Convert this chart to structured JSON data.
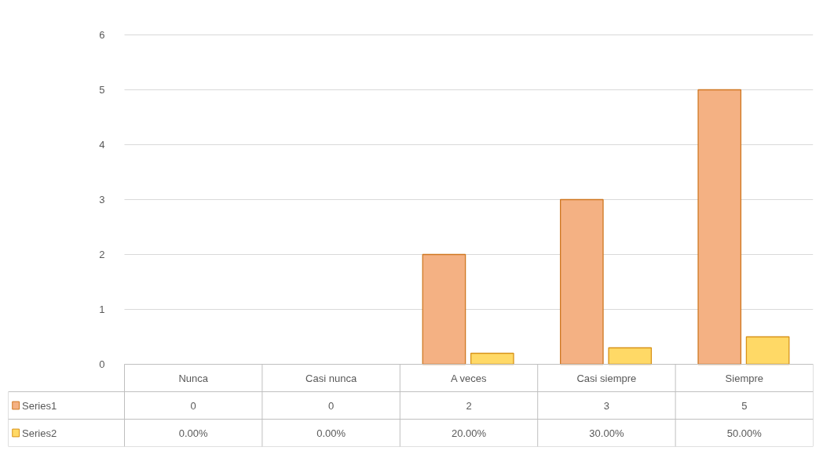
{
  "chart_data": {
    "type": "bar",
    "categories": [
      "Nunca",
      "Casi nunca",
      "A veces",
      "Casi siempre",
      "Siempre"
    ],
    "series": [
      {
        "name": "Series1",
        "color": "#f4b183",
        "values": [
          0,
          0,
          2,
          3,
          5
        ],
        "value_labels": [
          "0",
          "0",
          "2",
          "3",
          "5"
        ]
      },
      {
        "name": "Series2",
        "color": "#ffd966",
        "values": [
          0,
          0,
          0.2,
          0.3,
          0.5
        ],
        "value_labels": [
          "0.00%",
          "0.00%",
          "20.00%",
          "30.00%",
          "50.00%"
        ]
      }
    ],
    "ylim": [
      0,
      6
    ],
    "yticks": [
      0,
      1,
      2,
      3,
      4,
      5,
      6
    ],
    "grid": "y",
    "legend": "bottom"
  }
}
